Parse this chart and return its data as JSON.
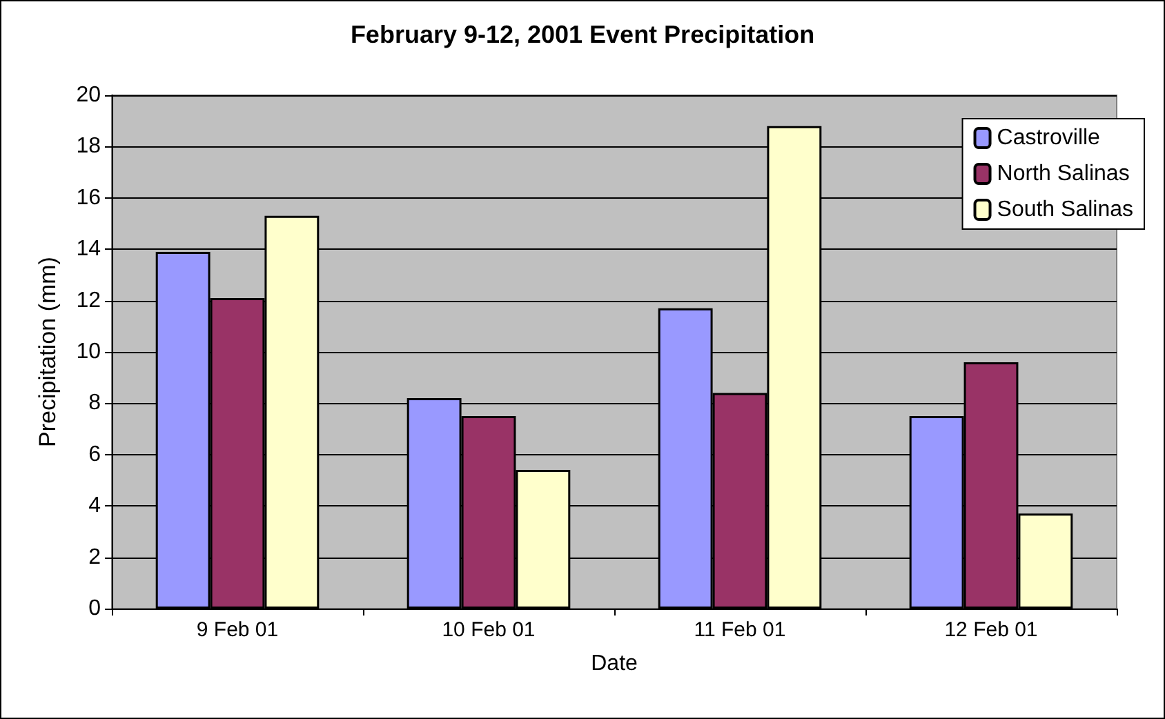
{
  "chart_data": {
    "type": "bar",
    "title": "February 9-12, 2001 Event Precipitation",
    "xlabel": "Date",
    "ylabel": "Precipitation (mm)",
    "categories": [
      "9 Feb 01",
      "10 Feb 01",
      "11 Feb 01",
      "12 Feb 01"
    ],
    "series": [
      {
        "name": "Castroville",
        "color": "#9999ff",
        "values": [
          13.9,
          8.2,
          11.7,
          7.5
        ]
      },
      {
        "name": "North Salinas",
        "color": "#993366",
        "values": [
          12.1,
          7.5,
          8.4,
          9.6
        ]
      },
      {
        "name": "South Salinas",
        "color": "#ffffcc",
        "values": [
          15.3,
          5.4,
          18.8,
          3.7
        ]
      }
    ],
    "ylim": [
      0,
      20
    ],
    "yticks": [
      0,
      2,
      4,
      6,
      8,
      10,
      12,
      14,
      16,
      18,
      20
    ],
    "grid": "y",
    "legend": "top right"
  }
}
